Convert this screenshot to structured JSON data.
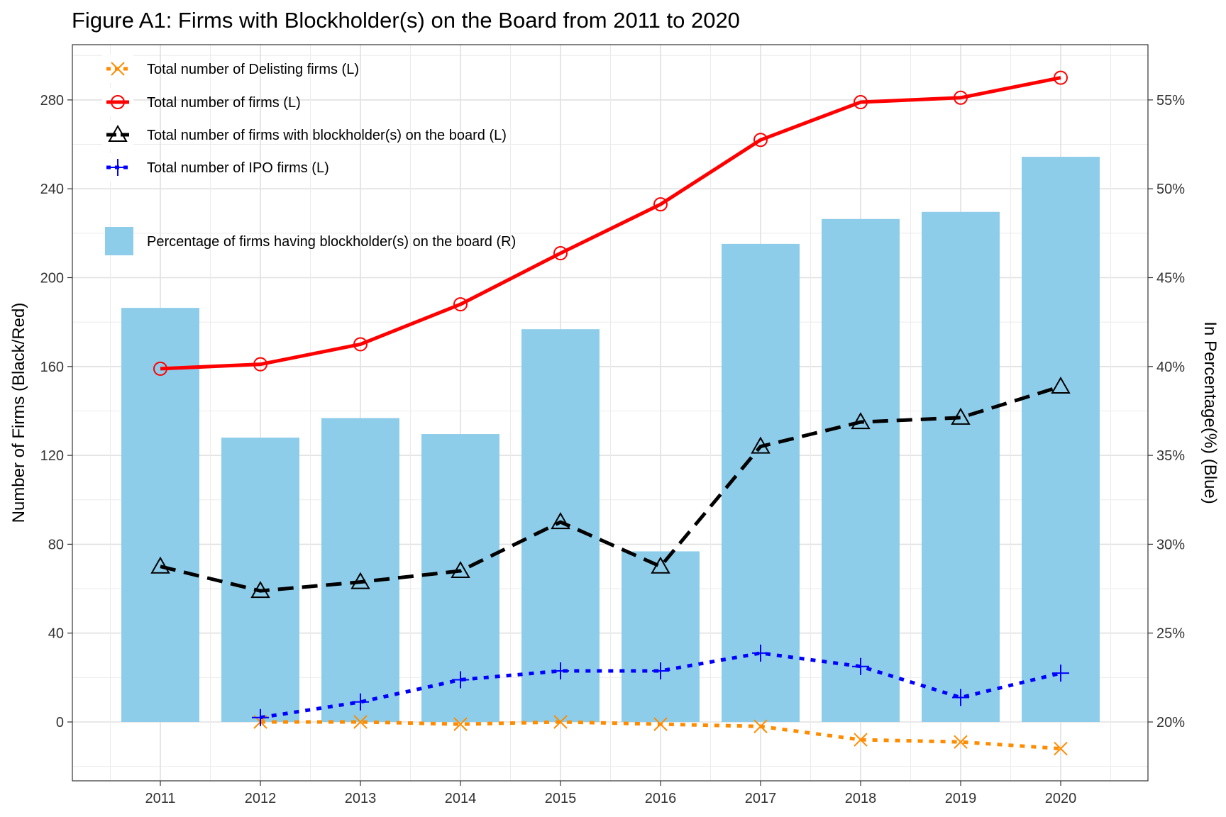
{
  "chart_data": {
    "type": "bar+line",
    "title": "Figure A1: Firms with Blockholder(s) on the Board from 2011 to 2020",
    "ylabel_left": "Number of Firms (Black/Red)",
    "ylabel_right": "In Percentage(%) (Blue)",
    "categories": [
      "2011",
      "2012",
      "2013",
      "2014",
      "2015",
      "2016",
      "2017",
      "2018",
      "2019",
      "2020"
    ],
    "y_left_ticks": [
      "0",
      "40",
      "80",
      "120",
      "160",
      "200",
      "240",
      "280"
    ],
    "y_right_ticks": [
      "20%",
      "25%",
      "30%",
      "35%",
      "40%",
      "45%",
      "50%",
      "55%"
    ],
    "ylim_left": [
      -26,
      304
    ],
    "grid": true,
    "legend_position": "top-left inside",
    "bars": {
      "name": "Percentage of firms having blockholder(s) on the board (R)",
      "color": "#8ECDEA",
      "values": [
        43.3,
        36.0,
        37.1,
        36.2,
        42.1,
        29.6,
        46.9,
        48.3,
        48.7,
        51.8
      ]
    },
    "series": [
      {
        "name": "Total number of Delisting firms (L)",
        "color": "#FF8C00",
        "marker": "x-icon",
        "line_style": "dotted",
        "values": [
          null,
          0,
          0,
          -1,
          0,
          -1,
          -2,
          -8,
          -9,
          -12
        ]
      },
      {
        "name": "Total number of firms (L)",
        "color": "#FF0000",
        "marker": "circle-icon",
        "line_style": "solid",
        "values": [
          159,
          161,
          170,
          188,
          211,
          233,
          262,
          279,
          281,
          290
        ]
      },
      {
        "name": "Total number of firms with blockholder(s) on the board (L)",
        "color": "#000000",
        "marker": "triangle-icon",
        "line_style": "dashed",
        "values": [
          70,
          59,
          63,
          68,
          90,
          70,
          124,
          135,
          137,
          151
        ]
      },
      {
        "name": "Total number of IPO firms (L)",
        "color": "#0000FF",
        "marker": "plus-icon",
        "line_style": "dotted",
        "values": [
          null,
          2,
          9,
          19,
          23,
          23,
          31,
          25,
          11,
          22
        ]
      }
    ]
  }
}
